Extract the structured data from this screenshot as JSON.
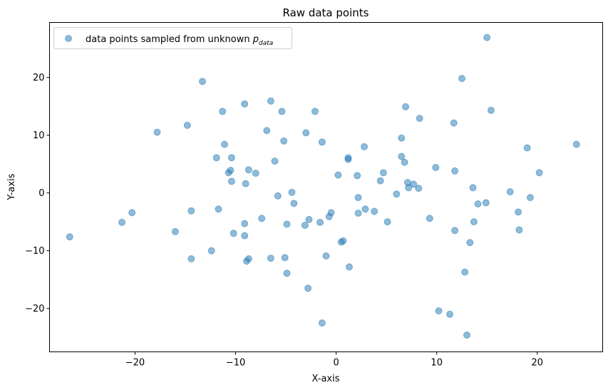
{
  "chart_data": {
    "type": "scatter",
    "title": "Raw data points",
    "xlabel": "X-axis",
    "ylabel": "Y-axis",
    "xlim": [
      -28.5,
      26.5
    ],
    "ylim": [
      -27.5,
      29.5
    ],
    "xticks": [
      -20,
      -10,
      0,
      10,
      20
    ],
    "yticks": [
      -20,
      -10,
      0,
      10,
      20
    ],
    "grid": false,
    "legend_position": "top-left",
    "series": [
      {
        "name": "data points sampled from unknown p_data",
        "legend": {
          "text": "data points sampled from unknown ",
          "math_base": "p",
          "math_sub": "data"
        },
        "color": "#1f77b4",
        "alpha": 0.5,
        "points": [
          [
            -26.5,
            -7.6
          ],
          [
            -21.3,
            -5.1
          ],
          [
            -20.3,
            -3.4
          ],
          [
            -17.8,
            10.5
          ],
          [
            -16.0,
            -6.7
          ],
          [
            -14.8,
            11.7
          ],
          [
            -14.4,
            -3.1
          ],
          [
            -14.4,
            -11.4
          ],
          [
            -13.3,
            19.3
          ],
          [
            -11.9,
            6.1
          ],
          [
            -11.7,
            -2.8
          ],
          [
            -11.3,
            14.1
          ],
          [
            -11.1,
            8.4
          ],
          [
            -12.4,
            -10.0
          ],
          [
            -10.7,
            3.5
          ],
          [
            -10.5,
            3.9
          ],
          [
            -10.4,
            6.1
          ],
          [
            -10.4,
            2.0
          ],
          [
            -10.2,
            -7.0
          ],
          [
            -9.1,
            15.4
          ],
          [
            -9.1,
            -5.3
          ],
          [
            -9.1,
            -7.4
          ],
          [
            -9.0,
            1.6
          ],
          [
            -8.9,
            -11.8
          ],
          [
            -8.7,
            -11.4
          ],
          [
            -8.7,
            4.0
          ],
          [
            -8.0,
            3.4
          ],
          [
            -7.4,
            -4.4
          ],
          [
            -6.9,
            10.8
          ],
          [
            -6.5,
            15.9
          ],
          [
            -6.5,
            -11.3
          ],
          [
            -6.1,
            5.5
          ],
          [
            -5.8,
            -0.5
          ],
          [
            -5.4,
            14.1
          ],
          [
            -5.2,
            9.0
          ],
          [
            -5.1,
            -11.2
          ],
          [
            -4.9,
            -13.9
          ],
          [
            -4.9,
            -5.4
          ],
          [
            -4.4,
            0.1
          ],
          [
            -4.2,
            -1.8
          ],
          [
            -3.0,
            10.4
          ],
          [
            -3.1,
            -5.6
          ],
          [
            -2.7,
            -4.6
          ],
          [
            -2.8,
            -16.5
          ],
          [
            -2.1,
            14.1
          ],
          [
            -1.6,
            -5.1
          ],
          [
            -1.4,
            8.8
          ],
          [
            -1.4,
            -22.5
          ],
          [
            -1.0,
            -10.9
          ],
          [
            -0.7,
            -4.1
          ],
          [
            -0.5,
            -3.4
          ],
          [
            0.2,
            3.1
          ],
          [
            0.5,
            -8.5
          ],
          [
            0.7,
            -8.3
          ],
          [
            1.2,
            5.8
          ],
          [
            1.2,
            6.1
          ],
          [
            1.3,
            -12.8
          ],
          [
            2.1,
            3.0
          ],
          [
            2.2,
            -0.8
          ],
          [
            2.2,
            -3.5
          ],
          [
            2.8,
            8.0
          ],
          [
            2.9,
            -2.8
          ],
          [
            3.8,
            -3.2
          ],
          [
            4.4,
            2.1
          ],
          [
            4.7,
            3.5
          ],
          [
            5.1,
            -5.0
          ],
          [
            6.0,
            -0.2
          ],
          [
            6.5,
            9.5
          ],
          [
            6.5,
            6.3
          ],
          [
            6.8,
            5.3
          ],
          [
            6.9,
            14.9
          ],
          [
            7.1,
            1.8
          ],
          [
            7.2,
            0.9
          ],
          [
            7.7,
            1.5
          ],
          [
            8.2,
            0.8
          ],
          [
            8.3,
            12.9
          ],
          [
            9.3,
            -4.4
          ],
          [
            9.9,
            4.4
          ],
          [
            10.2,
            -20.4
          ],
          [
            11.3,
            -21.0
          ],
          [
            11.7,
            12.1
          ],
          [
            11.8,
            3.8
          ],
          [
            11.8,
            -6.5
          ],
          [
            12.5,
            19.8
          ],
          [
            12.8,
            -13.7
          ],
          [
            13.0,
            -24.6
          ],
          [
            13.3,
            -8.6
          ],
          [
            13.6,
            0.9
          ],
          [
            13.7,
            -5.0
          ],
          [
            14.1,
            -1.9
          ],
          [
            14.9,
            -1.7
          ],
          [
            15.0,
            26.9
          ],
          [
            15.4,
            14.3
          ],
          [
            17.3,
            0.2
          ],
          [
            18.1,
            -3.3
          ],
          [
            18.2,
            -6.4
          ],
          [
            19.0,
            7.8
          ],
          [
            19.3,
            -0.8
          ],
          [
            20.2,
            3.5
          ],
          [
            23.9,
            8.4
          ]
        ]
      }
    ]
  }
}
